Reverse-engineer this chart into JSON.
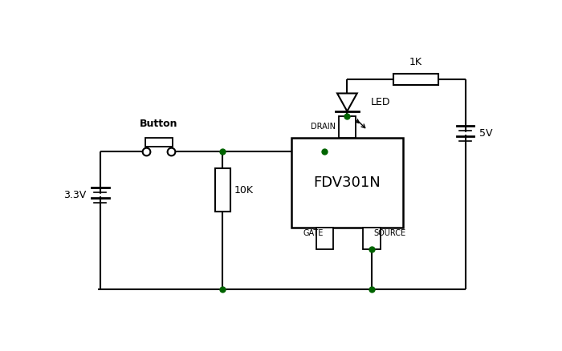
{
  "bg_color": "#ffffff",
  "line_color": "#000000",
  "line_width": 1.5,
  "dot_color": "#006400",
  "ic_label": "FDV301N",
  "resistor_1k_label": "1K",
  "resistor_10k_label": "10K",
  "battery_3v3_label": "3.3V",
  "battery_5v_label": "5V",
  "led_label": "LED",
  "button_label": "Button",
  "drain_label": "DRAIN",
  "gate_label": "GATE",
  "source_label": "SOURCE"
}
